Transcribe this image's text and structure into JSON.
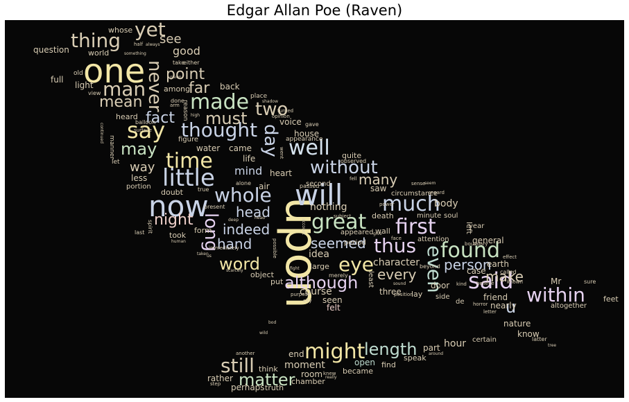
{
  "title": "Edgar Allan Poe (Raven)",
  "palette": [
    "#f2e6a6",
    "#bfdcd0",
    "#e6d2f0",
    "#d9cdb4",
    "#c9d3e6",
    "#eecfc9",
    "#c8e3c2",
    "#d6e3ee"
  ],
  "words": [
    {
      "text": "upon",
      "color": "#f2e6a6"
    },
    {
      "text": "one",
      "color": "#f2e6a6"
    },
    {
      "text": "now",
      "color": "#c9d3e6"
    },
    {
      "text": "will",
      "color": "#c9d3e6"
    },
    {
      "text": "said",
      "color": "#e6d2f0"
    },
    {
      "text": "little",
      "color": "#c9d3e6"
    },
    {
      "text": "time",
      "color": "#f2e6a6"
    },
    {
      "text": "say",
      "color": "#f2e6a6"
    },
    {
      "text": "thing",
      "color": "#d9cdb4"
    },
    {
      "text": "yet",
      "color": "#d9cdb4"
    },
    {
      "text": "man",
      "color": "#d9cdb4"
    },
    {
      "text": "made",
      "color": "#c8e3c2"
    },
    {
      "text": "thought",
      "color": "#c9d3e6"
    },
    {
      "text": "well",
      "color": "#d6e3ee"
    },
    {
      "text": "might",
      "color": "#f2e6a6"
    },
    {
      "text": "found",
      "color": "#c8e3c2"
    },
    {
      "text": "great",
      "color": "#c8e3c2"
    },
    {
      "text": "first",
      "color": "#e6d2f0"
    },
    {
      "text": "much",
      "color": "#c9d3e6"
    },
    {
      "text": "even",
      "color": "#bfdcd0"
    },
    {
      "text": "eye",
      "color": "#f2e6a6"
    },
    {
      "text": "thus",
      "color": "#e6d2f0"
    },
    {
      "text": "within",
      "color": "#e6d2f0"
    },
    {
      "text": "still",
      "color": "#d9cdb4"
    },
    {
      "text": "whole",
      "color": "#c9d3e6"
    },
    {
      "text": "without",
      "color": "#c9d3e6"
    },
    {
      "text": "long",
      "color": "#e6d2f0"
    },
    {
      "text": "never",
      "color": "#d9cdb4"
    },
    {
      "text": "day",
      "color": "#c9d3e6"
    },
    {
      "text": "word",
      "color": "#f2e6a6"
    },
    {
      "text": "length",
      "color": "#bfdcd0"
    },
    {
      "text": "although",
      "color": "#e6d2f0"
    },
    {
      "text": "matter",
      "color": "#c8e3c2"
    },
    {
      "text": "two",
      "color": "#d9cdb4"
    },
    {
      "text": "must",
      "color": "#d9cdb4"
    },
    {
      "text": "may",
      "color": "#c8e3c2"
    },
    {
      "text": "point",
      "color": "#d9cdb4"
    },
    {
      "text": "far",
      "color": "#d9cdb4"
    },
    {
      "text": "mean",
      "color": "#d9cdb4"
    },
    {
      "text": "fact",
      "color": "#c9d3e6"
    },
    {
      "text": "night",
      "color": "#eecfc9"
    },
    {
      "text": "hand",
      "color": "#c9d3e6"
    },
    {
      "text": "indeed",
      "color": "#c9d3e6"
    },
    {
      "text": "seemed",
      "color": "#c9d3e6"
    },
    {
      "text": "person",
      "color": "#c9d3e6"
    },
    {
      "text": "every",
      "color": "#d9cdb4"
    },
    {
      "text": "make",
      "color": "#d9cdb4"
    },
    {
      "text": "head",
      "color": "#c9d3e6"
    },
    {
      "text": "many",
      "color": "#d9cdb4"
    },
    {
      "text": "way",
      "color": "#d9cdb4"
    },
    {
      "text": "see",
      "color": "#d9cdb4"
    },
    {
      "text": "good",
      "color": "#d9cdb4"
    },
    {
      "text": "u",
      "color": "#c9d3e6"
    },
    {
      "text": "mind",
      "color": "#c9d3e6"
    },
    {
      "text": "course",
      "color": "#d9cdb4"
    },
    {
      "text": "idea",
      "color": "#d9cdb4"
    },
    {
      "text": "body",
      "color": "#d9cdb4"
    },
    {
      "text": "nothing",
      "color": "#d9cdb4"
    },
    {
      "text": "character",
      "color": "#d9cdb4"
    },
    {
      "text": "moment",
      "color": "#d9cdb4"
    },
    {
      "text": "hour",
      "color": "#d9cdb4"
    },
    {
      "text": "end",
      "color": "#d9cdb4"
    },
    {
      "text": "room",
      "color": "#d9cdb4"
    },
    {
      "text": "open",
      "color": "#bfdcd0"
    },
    {
      "text": "know",
      "color": "#d9cdb4"
    },
    {
      "text": "nature",
      "color": "#d9cdb4"
    },
    {
      "text": "three",
      "color": "#d9cdb4"
    },
    {
      "text": "seen",
      "color": "#d9cdb4"
    },
    {
      "text": "felt",
      "color": "#eecfc9"
    },
    {
      "text": "door",
      "color": "#d9cdb4"
    },
    {
      "text": "friend",
      "color": "#d9cdb4"
    },
    {
      "text": "nearly",
      "color": "#d9cdb4"
    },
    {
      "text": "earth",
      "color": "#d9cdb4"
    },
    {
      "text": "case",
      "color": "#d9cdb4"
    },
    {
      "text": "general",
      "color": "#d9cdb4"
    },
    {
      "text": "Mr",
      "color": "#d9cdb4"
    },
    {
      "text": "feet",
      "color": "#d9cdb4"
    },
    {
      "text": "part",
      "color": "#d9cdb4"
    },
    {
      "text": "certain",
      "color": "#d9cdb4"
    },
    {
      "text": "rather",
      "color": "#d9cdb4"
    },
    {
      "text": "perhaps",
      "color": "#d9cdb4"
    },
    {
      "text": "truth",
      "color": "#d9cdb4"
    },
    {
      "text": "chamber",
      "color": "#d9cdb4"
    },
    {
      "text": "became",
      "color": "#d9cdb4"
    },
    {
      "text": "find",
      "color": "#d9cdb4"
    },
    {
      "text": "think",
      "color": "#d9cdb4"
    },
    {
      "text": "speak",
      "color": "#d9cdb4"
    },
    {
      "text": "water",
      "color": "#d9cdb4"
    },
    {
      "text": "came",
      "color": "#d9cdb4"
    },
    {
      "text": "air",
      "color": "#d9cdb4"
    },
    {
      "text": "heart",
      "color": "#d9cdb4"
    },
    {
      "text": "life",
      "color": "#d9cdb4"
    },
    {
      "text": "less",
      "color": "#d9cdb4"
    },
    {
      "text": "saw",
      "color": "#d9cdb4"
    },
    {
      "text": "house",
      "color": "#d9cdb4"
    },
    {
      "text": "voice",
      "color": "#d9cdb4"
    },
    {
      "text": "light",
      "color": "#d9cdb4"
    },
    {
      "text": "full",
      "color": "#d9cdb4"
    },
    {
      "text": "back",
      "color": "#d9cdb4"
    },
    {
      "text": "heard",
      "color": "#d9cdb4"
    },
    {
      "text": "among",
      "color": "#d9cdb4"
    },
    {
      "text": "question",
      "color": "#d9cdb4"
    },
    {
      "text": "world",
      "color": "#d9cdb4"
    },
    {
      "text": "whose",
      "color": "#d9cdb4"
    },
    {
      "text": "took",
      "color": "#d9cdb4"
    },
    {
      "text": "object",
      "color": "#d9cdb4"
    },
    {
      "text": "put",
      "color": "#d9cdb4"
    },
    {
      "text": "large",
      "color": "#d9cdb4"
    },
    {
      "text": "death",
      "color": "#d9cdb4"
    },
    {
      "text": "wall",
      "color": "#d9cdb4"
    },
    {
      "text": "doubt",
      "color": "#d9cdb4"
    },
    {
      "text": "form",
      "color": "#d9cdb4"
    },
    {
      "text": "portion",
      "color": "#d9cdb4"
    },
    {
      "text": "second",
      "color": "#d9cdb4"
    },
    {
      "text": "quite",
      "color": "#d9cdb4"
    },
    {
      "text": "left",
      "color": "#d9cdb4"
    },
    {
      "text": "lay",
      "color": "#d9cdb4"
    },
    {
      "text": "de",
      "color": "#d9cdb4"
    },
    {
      "text": "altogether",
      "color": "#d9cdb4"
    },
    {
      "text": "year",
      "color": "#d9cdb4"
    },
    {
      "text": "side",
      "color": "#d9cdb4"
    },
    {
      "text": "let",
      "color": "#d9cdb4"
    },
    {
      "text": "manner",
      "color": "#d9cdb4"
    },
    {
      "text": "appeared",
      "color": "#d9cdb4"
    },
    {
      "text": "period",
      "color": "#d9cdb4"
    },
    {
      "text": "minute",
      "color": "#d9cdb4"
    },
    {
      "text": "soul",
      "color": "#d9cdb4"
    },
    {
      "text": "circumstance",
      "color": "#d9cdb4"
    },
    {
      "text": "attention",
      "color": "#d9cdb4"
    },
    {
      "text": "least",
      "color": "#d9cdb4"
    },
    {
      "text": "figure",
      "color": "#d9cdb4"
    },
    {
      "text": "appearance",
      "color": "#d9cdb4"
    },
    {
      "text": "place",
      "color": "#d9cdb4"
    },
    {
      "text": "done",
      "color": "#d9cdb4"
    },
    {
      "text": "view",
      "color": "#d9cdb4"
    },
    {
      "text": "old",
      "color": "#d9cdb4"
    },
    {
      "text": "half",
      "color": "#d9cdb4"
    },
    {
      "text": "always",
      "color": "#d9cdb4"
    },
    {
      "text": "take",
      "color": "#d9cdb4"
    },
    {
      "text": "either",
      "color": "#d9cdb4"
    },
    {
      "text": "something",
      "color": "#d9cdb4"
    },
    {
      "text": "reason",
      "color": "#d9cdb4"
    },
    {
      "text": "arm",
      "color": "#d9cdb4"
    },
    {
      "text": "high",
      "color": "#d9cdb4"
    },
    {
      "text": "balloon",
      "color": "#d9cdb4"
    },
    {
      "text": "surface",
      "color": "#d9cdb4"
    },
    {
      "text": "continued",
      "color": "#d9cdb4"
    },
    {
      "text": "gave",
      "color": "#d9cdb4"
    },
    {
      "text": "opinion",
      "color": "#d9cdb4"
    },
    {
      "text": "shadow",
      "color": "#d9cdb4"
    },
    {
      "text": "observed",
      "color": "#d9cdb4"
    },
    {
      "text": "fell",
      "color": "#d9cdb4"
    },
    {
      "text": "sense",
      "color": "#d9cdb4"
    },
    {
      "text": "regard",
      "color": "#d9cdb4"
    },
    {
      "text": "power",
      "color": "#d9cdb4"
    },
    {
      "text": "subject",
      "color": "#d9cdb4"
    },
    {
      "text": "passed",
      "color": "#d9cdb4"
    },
    {
      "text": "alone",
      "color": "#d9cdb4"
    },
    {
      "text": "true",
      "color": "#d9cdb4"
    },
    {
      "text": "spirit",
      "color": "#d9cdb4"
    },
    {
      "text": "present",
      "color": "#d9cdb4"
    },
    {
      "text": "human",
      "color": "#d9cdb4"
    },
    {
      "text": "last",
      "color": "#d9cdb4"
    },
    {
      "text": "immediately",
      "color": "#d9cdb4"
    },
    {
      "text": "possible",
      "color": "#d9cdb4"
    },
    {
      "text": "deep",
      "color": "#d9cdb4"
    },
    {
      "text": "scarcely",
      "color": "#d9cdb4"
    },
    {
      "text": "merely",
      "color": "#d9cdb4"
    },
    {
      "text": "purpose",
      "color": "#d9cdb4"
    },
    {
      "text": "city",
      "color": "#d9cdb4"
    },
    {
      "text": "position",
      "color": "#d9cdb4"
    },
    {
      "text": "sound",
      "color": "#d9cdb4"
    },
    {
      "text": "beyond",
      "color": "#d9cdb4"
    },
    {
      "text": "kind",
      "color": "#d9cdb4"
    },
    {
      "text": "believe",
      "color": "#d9cdb4"
    },
    {
      "text": "called",
      "color": "#d9cdb4"
    },
    {
      "text": "horror",
      "color": "#d9cdb4"
    },
    {
      "text": "letter",
      "color": "#d9cdb4"
    },
    {
      "text": "effect",
      "color": "#d9cdb4"
    },
    {
      "text": "known",
      "color": "#d9cdb4"
    },
    {
      "text": "latter",
      "color": "#d9cdb4"
    },
    {
      "text": "tree",
      "color": "#d9cdb4"
    },
    {
      "text": "around",
      "color": "#d9cdb4"
    },
    {
      "text": "another",
      "color": "#d9cdb4"
    },
    {
      "text": "knew",
      "color": "#d9cdb4"
    },
    {
      "text": "really",
      "color": "#d9cdb4"
    },
    {
      "text": "step",
      "color": "#d9cdb4"
    },
    {
      "text": "bod",
      "color": "#d9cdb4"
    },
    {
      "text": "wild",
      "color": "#d9cdb4"
    },
    {
      "text": "sure",
      "color": "#d9cdb4"
    },
    {
      "text": "fight",
      "color": "#d9cdb4"
    },
    {
      "text": "face",
      "color": "#d9cdb4"
    },
    {
      "text": "give",
      "color": "#d9cdb4"
    },
    {
      "text": "boundary",
      "color": "#d9cdb4"
    },
    {
      "text": "given",
      "color": "#d9cdb4"
    },
    {
      "text": "turned",
      "color": "#d9cdb4"
    },
    {
      "text": "went",
      "color": "#d9cdb4"
    },
    {
      "text": "taken",
      "color": "#d9cdb4"
    },
    {
      "text": "us",
      "color": "#d9cdb4"
    },
    {
      "text": "account",
      "color": "#d9cdb4"
    },
    {
      "text": "seem",
      "color": "#d9cdb4"
    },
    {
      "text": "head",
      "color": "#d9cdb4"
    }
  ]
}
